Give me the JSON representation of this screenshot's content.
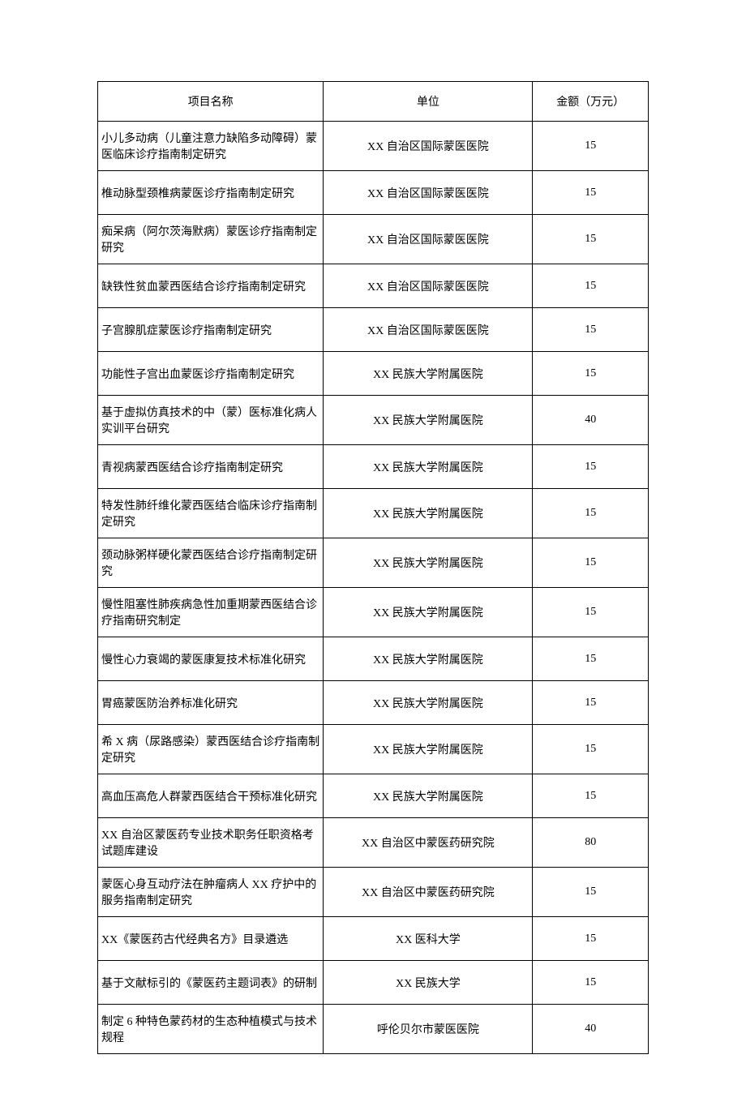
{
  "table": {
    "columns": [
      "项目名称",
      "单位",
      "金额（万元）"
    ],
    "rows": [
      [
        "小儿多动病（儿童注意力缺陷多动障碍）蒙医临床诊疗指南制定研究",
        "XX 自治区国际蒙医医院",
        "15"
      ],
      [
        "椎动脉型颈椎病蒙医诊疗指南制定研究",
        "XX 自治区国际蒙医医院",
        "15"
      ],
      [
        "痴呆病（阿尔茨海默病）蒙医诊疗指南制定研究",
        "XX 自治区国际蒙医医院",
        "15"
      ],
      [
        "缺铁性贫血蒙西医结合诊疗指南制定研究",
        "XX 自治区国际蒙医医院",
        "15"
      ],
      [
        "子宫腺肌症蒙医诊疗指南制定研究",
        "XX 自治区国际蒙医医院",
        "15"
      ],
      [
        "功能性子宫出血蒙医诊疗指南制定研究",
        "XX 民族大学附属医院",
        "15"
      ],
      [
        "基于虚拟仿真技术的中（蒙）医标准化病人实训平台研究",
        "XX 民族大学附属医院",
        "40"
      ],
      [
        "青视病蒙西医结合诊疗指南制定研究",
        "XX 民族大学附属医院",
        "15"
      ],
      [
        "特发性肺纤维化蒙西医结合临床诊疗指南制定研究",
        "XX 民族大学附属医院",
        "15"
      ],
      [
        "颈动脉粥样硬化蒙西医结合诊疗指南制定研究",
        "XX 民族大学附属医院",
        "15"
      ],
      [
        "慢性阻塞性肺疾病急性加重期蒙西医结合诊疗指南研究制定",
        "XX 民族大学附属医院",
        "15"
      ],
      [
        "慢性心力衰竭的蒙医康复技术标准化研究",
        "XX 民族大学附属医院",
        "15"
      ],
      [
        "胃癌蒙医防治养标准化研究",
        "XX 民族大学附属医院",
        "15"
      ],
      [
        "希 X 病（尿路感染）蒙西医结合诊疗指南制定研究",
        "XX 民族大学附属医院",
        "15"
      ],
      [
        "高血压高危人群蒙西医结合干预标准化研究",
        "XX 民族大学附属医院",
        "15"
      ],
      [
        "XX 自治区蒙医药专业技术职务任职资格考试题库建设",
        "XX 自治区中蒙医药研究院",
        "80"
      ],
      [
        "蒙医心身互动疗法在肿瘤病人 XX 疗护中的服务指南制定研究",
        "XX 自治区中蒙医药研究院",
        "15"
      ],
      [
        "XX《蒙医药古代经典名方》目录遴选",
        "XX 医科大学",
        "15"
      ],
      [
        "基于文献标引的《蒙医药主题词表》的研制",
        "XX 民族大学",
        "15"
      ],
      [
        "制定 6 种特色蒙药材的生态种植模式与技术规程",
        "呼伦贝尔市蒙医医院",
        "40"
      ]
    ],
    "border_color": "#000000",
    "background_color": "#ffffff",
    "font_size": 14,
    "text_color": "#000000"
  }
}
